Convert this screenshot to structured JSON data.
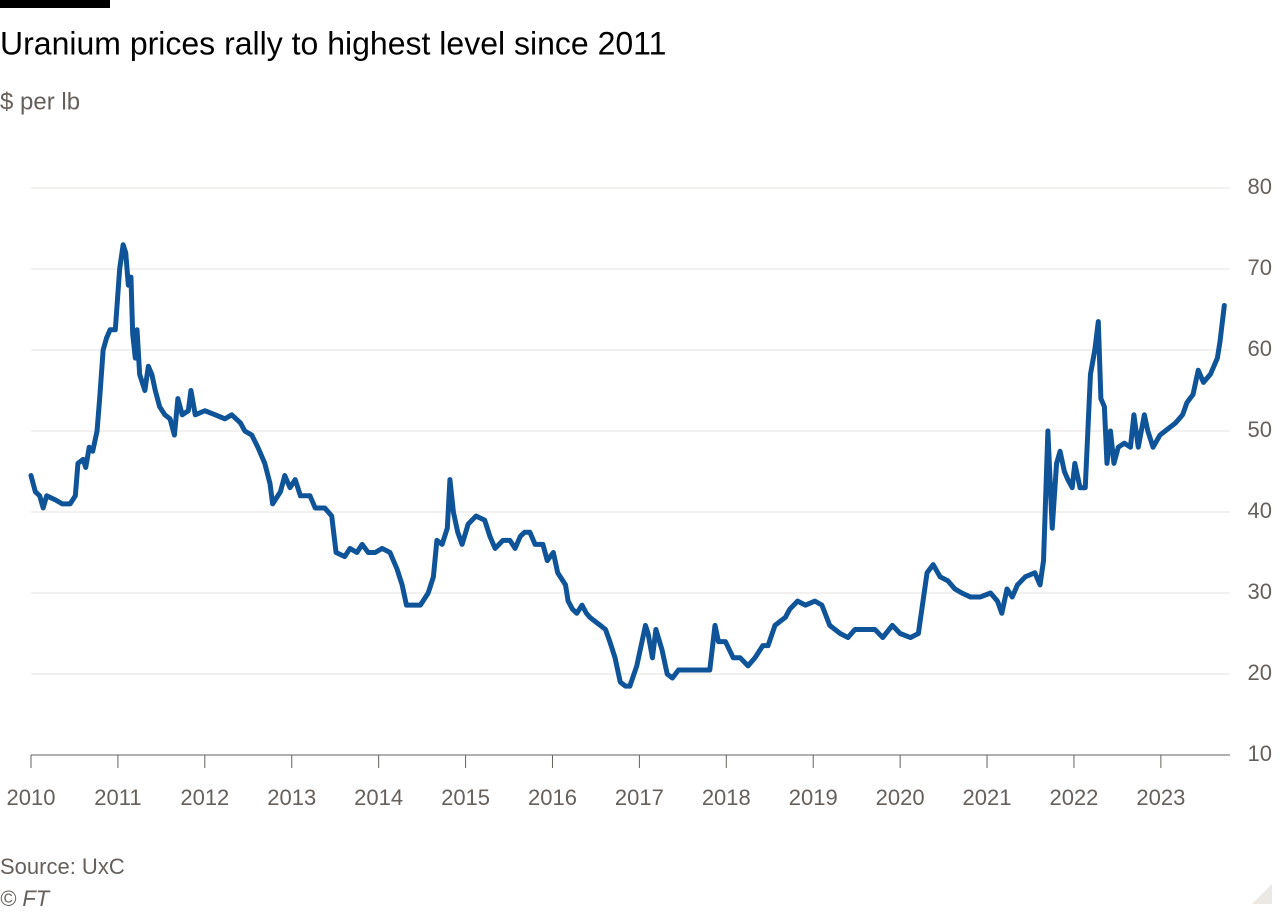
{
  "chart_data": {
    "type": "line",
    "title": "Uranium prices rally to highest level since 2011",
    "subtitle": "$ per lb",
    "source": "Source: UxC",
    "credit": "© FT",
    "xlim": [
      2010,
      2023.83
    ],
    "xticks": [
      2010,
      2011,
      2012,
      2013,
      2014,
      2015,
      2016,
      2017,
      2018,
      2019,
      2020,
      2021,
      2022,
      2023
    ],
    "ylim": [
      10,
      80
    ],
    "yticks": [
      10,
      20,
      30,
      40,
      50,
      60,
      70,
      80
    ],
    "grid": true,
    "x": [
      2010.0,
      2010.05,
      2010.1,
      2010.14,
      2010.18,
      2010.28,
      2010.36,
      2010.45,
      2010.51,
      2010.54,
      2010.6,
      2010.63,
      2010.67,
      2010.71,
      2010.76,
      2010.79,
      2010.83,
      2010.87,
      2010.91,
      2010.97,
      2011.02,
      2011.06,
      2011.09,
      2011.12,
      2011.15,
      2011.17,
      2011.2,
      2011.22,
      2011.25,
      2011.31,
      2011.35,
      2011.39,
      2011.43,
      2011.48,
      2011.54,
      2011.6,
      2011.65,
      2011.69,
      2011.74,
      2011.81,
      2011.84,
      2011.89,
      2012.0,
      2012.12,
      2012.23,
      2012.31,
      2012.41,
      2012.46,
      2012.54,
      2012.61,
      2012.69,
      2012.75,
      2012.78,
      2012.87,
      2012.92,
      2012.98,
      2013.04,
      2013.1,
      2013.21,
      2013.27,
      2013.38,
      2013.46,
      2013.51,
      2013.61,
      2013.67,
      2013.75,
      2013.81,
      2013.88,
      2013.96,
      2014.04,
      2014.13,
      2014.21,
      2014.27,
      2014.32,
      2014.38,
      2014.48,
      2014.57,
      2014.63,
      2014.67,
      2014.73,
      2014.79,
      2014.82,
      2014.86,
      2014.91,
      2014.96,
      2015.03,
      2015.12,
      2015.22,
      2015.28,
      2015.34,
      2015.43,
      2015.51,
      2015.57,
      2015.63,
      2015.68,
      2015.74,
      2015.8,
      2015.89,
      2015.94,
      2016.01,
      2016.06,
      2016.15,
      2016.18,
      2016.23,
      2016.28,
      2016.34,
      2016.39,
      2016.43,
      2016.49,
      2016.55,
      2016.61,
      2016.66,
      2016.72,
      2016.78,
      2016.84,
      2016.89,
      2016.97,
      2017.01,
      2017.07,
      2017.1,
      2017.15,
      2017.19,
      2017.26,
      2017.32,
      2017.38,
      2017.45,
      2017.58,
      2017.7,
      2017.81,
      2017.87,
      2017.91,
      2017.99,
      2018.08,
      2018.16,
      2018.25,
      2018.33,
      2018.42,
      2018.48,
      2018.56,
      2018.68,
      2018.73,
      2018.82,
      2018.91,
      2019.02,
      2019.1,
      2019.19,
      2019.31,
      2019.4,
      2019.48,
      2019.6,
      2019.71,
      2019.8,
      2019.91,
      2020.0,
      2020.12,
      2020.21,
      2020.25,
      2020.31,
      2020.38,
      2020.46,
      2020.55,
      2020.63,
      2020.71,
      2020.81,
      2020.92,
      2021.04,
      2021.12,
      2021.17,
      2021.23,
      2021.29,
      2021.35,
      2021.44,
      2021.55,
      2021.61,
      2021.65,
      2021.7,
      2021.75,
      2021.8,
      2021.84,
      2021.89,
      2021.93,
      2021.98,
      2022.01,
      2022.07,
      2022.13,
      2022.19,
      2022.24,
      2022.28,
      2022.31,
      2022.35,
      2022.38,
      2022.42,
      2022.46,
      2022.51,
      2022.58,
      2022.65,
      2022.69,
      2022.74,
      2022.81,
      2022.85,
      2022.91,
      2022.99,
      2023.05,
      2023.11,
      2023.17,
      2023.25,
      2023.3,
      2023.37,
      2023.43,
      2023.49,
      2023.57,
      2023.65,
      2023.68,
      2023.73
    ],
    "series": [
      {
        "name": "Uranium price",
        "color": "#0f5499",
        "values": [
          44.5,
          42.5,
          42,
          40.5,
          42,
          41.5,
          41,
          41,
          42,
          46,
          46.5,
          45.5,
          48,
          47.5,
          50,
          54,
          60,
          61.5,
          62.5,
          62.5,
          70,
          73,
          72,
          68,
          69,
          62,
          59,
          62.5,
          57,
          55,
          58,
          57,
          55,
          53,
          52,
          51.5,
          49.5,
          54,
          52,
          52.5,
          55,
          52,
          52.5,
          52,
          51.5,
          52,
          51,
          50,
          49.5,
          48,
          46,
          43.5,
          41,
          42.5,
          44.5,
          43,
          44,
          42,
          42,
          40.5,
          40.5,
          39.5,
          35,
          34.5,
          35.5,
          35,
          36,
          35,
          35,
          35.5,
          35,
          33,
          31,
          28.5,
          28.5,
          28.5,
          30,
          32,
          36.5,
          36,
          38,
          44,
          40,
          37.5,
          36,
          38.5,
          39.5,
          39,
          37,
          35.5,
          36.5,
          36.5,
          35.5,
          37,
          37.5,
          37.5,
          36,
          36,
          34,
          35,
          32.5,
          31,
          29,
          28,
          27.5,
          28.5,
          27.5,
          27,
          26.5,
          26,
          25.5,
          24,
          22,
          19,
          18.5,
          18.5,
          21,
          23,
          26,
          25,
          22,
          25.5,
          23,
          20,
          19.5,
          20.5,
          20.5,
          20.5,
          20.5,
          26,
          24,
          24,
          22,
          22,
          21,
          22,
          23.5,
          23.5,
          26,
          27,
          28,
          29,
          28.5,
          29,
          28.5,
          26,
          25,
          24.5,
          25.5,
          25.5,
          25.5,
          24.5,
          26,
          25,
          24.5,
          25,
          28,
          32.5,
          33.5,
          32,
          31.5,
          30.5,
          30,
          29.5,
          29.5,
          30,
          29,
          27.5,
          30.5,
          29.5,
          31,
          32,
          32.5,
          31,
          34,
          50,
          38,
          46,
          47.5,
          45,
          44,
          43,
          46,
          43,
          43,
          57,
          60,
          63.5,
          54,
          53,
          46,
          50,
          46,
          48,
          48.5,
          48,
          52,
          48,
          52,
          50,
          48,
          49.5,
          50,
          50.5,
          51,
          52,
          53.5,
          54.5,
          57.5,
          56,
          57,
          59,
          61,
          65.5
        ]
      }
    ]
  }
}
